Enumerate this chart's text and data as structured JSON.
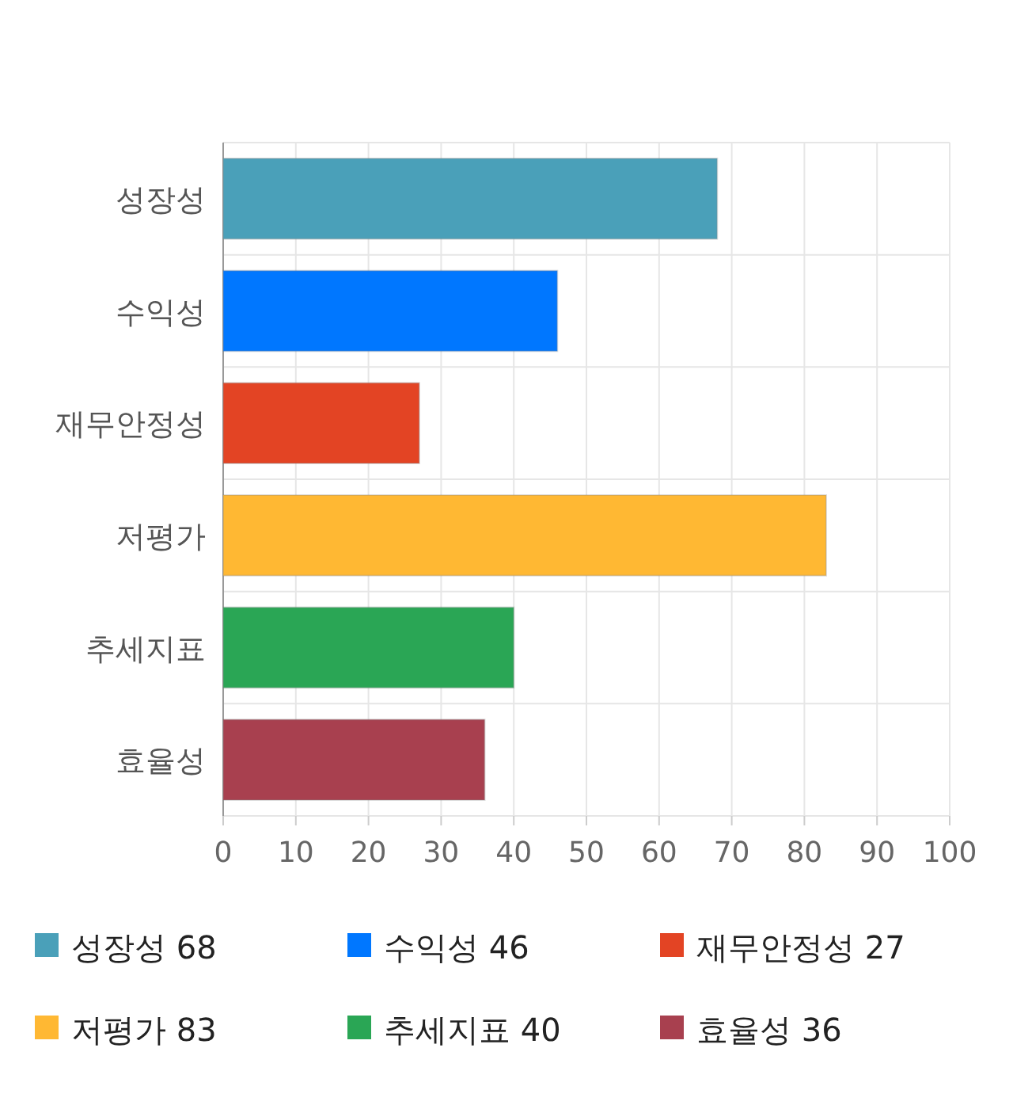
{
  "chart_data": {
    "type": "bar",
    "orientation": "horizontal",
    "stacked": true,
    "categories": [
      "성장성",
      "수익성",
      "재무안정성",
      "저평가",
      "추세지표",
      "효율성"
    ],
    "series": [
      {
        "name": "성장성 68",
        "color": "#4aa0b9",
        "values": [
          68,
          null,
          null,
          null,
          null,
          null
        ]
      },
      {
        "name": "수익성 46",
        "color": "#0077ff",
        "values": [
          null,
          46,
          null,
          null,
          null,
          null
        ]
      },
      {
        "name": "재무안정성 27",
        "color": "#e34424",
        "values": [
          null,
          null,
          27,
          null,
          null,
          null
        ]
      },
      {
        "name": "저평가 83",
        "color": "#ffb833",
        "values": [
          null,
          null,
          null,
          83,
          null,
          null
        ]
      },
      {
        "name": "추세지표 40",
        "color": "#2aa655",
        "values": [
          null,
          null,
          null,
          null,
          40,
          null
        ]
      },
      {
        "name": "효율성 36",
        "color": "#a8404f",
        "values": [
          null,
          null,
          null,
          null,
          null,
          36
        ]
      }
    ],
    "xlim": [
      0,
      100
    ],
    "xticks": [
      0,
      10,
      20,
      30,
      40,
      50,
      60,
      70,
      80,
      90,
      100
    ],
    "grid": true,
    "legend": "bottom"
  }
}
